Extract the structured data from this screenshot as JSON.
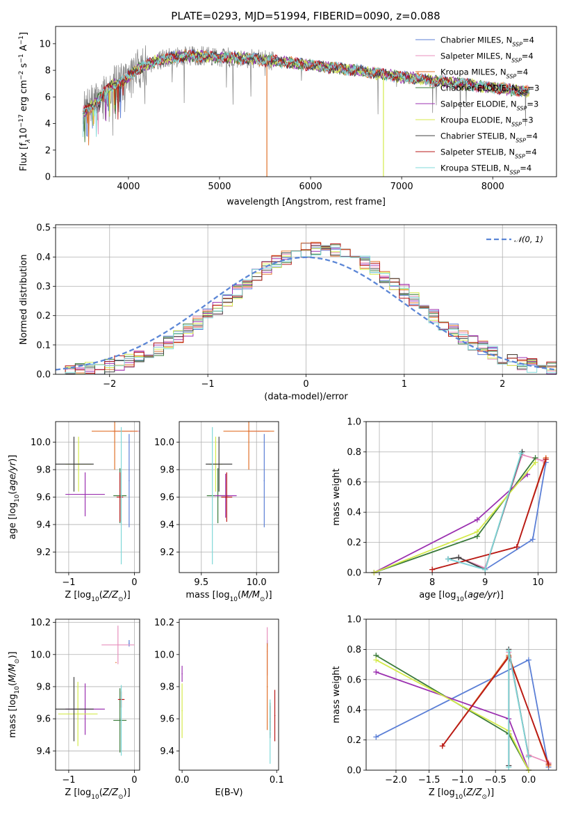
{
  "figure": {
    "title": "PLATE=0293, MJD=51994, FIBERID=0090, z=0.088"
  },
  "models": [
    {
      "name": "Chabrier MILES",
      "nssp": "4",
      "color": "#5b7fd6"
    },
    {
      "name": "Salpeter MILES",
      "nssp": "4",
      "color": "#e88fbc"
    },
    {
      "name": "Kroupa MILES",
      "nssp": "4",
      "color": "#e0722a"
    },
    {
      "name": "Chabrier ELODIE",
      "nssp": "3",
      "color": "#3a7a3a"
    },
    {
      "name": "Salpeter ELODIE",
      "nssp": "3",
      "color": "#9b30b0"
    },
    {
      "name": "Kroupa ELODIE",
      "nssp": "3",
      "color": "#d4ea4a"
    },
    {
      "name": "Chabrier STELIB",
      "nssp": "4",
      "color": "#404040"
    },
    {
      "name": "Salpeter STELIB",
      "nssp": "4",
      "color": "#b81818"
    },
    {
      "name": "Kroupa STELIB",
      "nssp": "4",
      "color": "#7fd8d8"
    }
  ],
  "chart_data": [
    {
      "id": "spectrum",
      "type": "line",
      "xlabel": "wavelength [Angstrom, rest frame]",
      "ylabel_parts": [
        "Flux [f",
        "λ",
        "10",
        "−17",
        " erg cm",
        "−2",
        " s",
        "−1",
        " A",
        "−1",
        "]"
      ],
      "xlim": [
        3200,
        8700
      ],
      "ylim": [
        0,
        11.3
      ],
      "xticks": [
        4000,
        5000,
        6000,
        7000,
        8000
      ],
      "yticks": [
        0,
        2,
        4,
        6,
        8,
        10
      ],
      "grid": false,
      "legend_position": "upper-right",
      "series_shape": [
        [
          3500,
          4.8
        ],
        [
          3650,
          5.6
        ],
        [
          3800,
          6.8
        ],
        [
          3950,
          7.2
        ],
        [
          4100,
          8.1
        ],
        [
          4300,
          8.7
        ],
        [
          4500,
          9.0
        ],
        [
          4700,
          9.1
        ],
        [
          5000,
          9.0
        ],
        [
          5300,
          8.9
        ],
        [
          5600,
          8.7
        ],
        [
          6000,
          8.4
        ],
        [
          6500,
          8.0
        ],
        [
          7000,
          7.5
        ],
        [
          7500,
          7.1
        ],
        [
          8000,
          6.7
        ],
        [
          8400,
          6.4
        ]
      ],
      "data_range": [
        3500,
        8400
      ],
      "spikes": [
        [
          5520,
          0
        ],
        [
          6800,
          0
        ]
      ]
    },
    {
      "id": "residuals",
      "type": "histogram",
      "xlabel": "(data-model)/error",
      "ylabel": "Normed distribution",
      "xlim": [
        -2.55,
        2.55
      ],
      "ylim": [
        0,
        0.51
      ],
      "xticks": [
        -2,
        -1,
        0,
        1,
        2
      ],
      "yticks": [
        0.0,
        0.1,
        0.2,
        0.3,
        0.4,
        0.5
      ],
      "grid": true,
      "legend_position": "upper-right",
      "reference_curve": "𝒩(0, 1)",
      "bin_width": 0.1
    },
    {
      "id": "z-age",
      "type": "errorbar",
      "xlabel": "Z [log10(Z/Z⊙)]",
      "ylabel": "age [log10(age/yr)]",
      "xlim": [
        -1.2,
        0.08
      ],
      "ylim": [
        9.05,
        10.15
      ],
      "xticks": [
        -1,
        0
      ],
      "yticks": [
        9.2,
        9.4,
        9.6,
        9.8,
        10.0
      ],
      "grid": true,
      "points": [
        {
          "model": 0,
          "x": -0.08,
          "y": 9.72,
          "xerr": 0.0,
          "yerr": 0.34
        },
        {
          "model": 1,
          "x": -0.05,
          "y": 10.08,
          "xerr": 0.28,
          "yerr": 0.0
        },
        {
          "model": 2,
          "x": -0.3,
          "y": 10.08,
          "xerr": 0.35,
          "yerr": 0.28
        },
        {
          "model": 3,
          "x": -0.22,
          "y": 9.61,
          "xerr": 0.1,
          "yerr": 0.2
        },
        {
          "model": 4,
          "x": -0.75,
          "y": 9.62,
          "xerr": 0.3,
          "yerr": 0.16
        },
        {
          "model": 5,
          "x": -0.85,
          "y": 9.84,
          "xerr": 0.2,
          "yerr": 0.2
        },
        {
          "model": 6,
          "x": -0.92,
          "y": 9.84,
          "xerr": 0.3,
          "yerr": 0.2
        },
        {
          "model": 7,
          "x": -0.22,
          "y": 9.6,
          "xerr": 0.05,
          "yerr": 0.18
        },
        {
          "model": 8,
          "x": -0.2,
          "y": 9.61,
          "xerr": 0.0,
          "yerr": 0.5
        }
      ]
    },
    {
      "id": "mass-age",
      "type": "errorbar",
      "xlabel": "mass [log10(M/M⊙)]",
      "ylabel": "",
      "xlim": [
        9.3,
        10.2
      ],
      "ylim": [
        9.05,
        10.15
      ],
      "xticks": [
        9.5,
        10.0
      ],
      "yticks": [
        9.2,
        9.4,
        9.6,
        9.8,
        10.0
      ],
      "grid": true,
      "points": [
        {
          "model": 0,
          "x": 10.07,
          "y": 9.72,
          "xerr": 0.0,
          "yerr": 0.34
        },
        {
          "model": 1,
          "x": 10.02,
          "y": 10.08,
          "xerr": 0.1,
          "yerr": 0.0
        },
        {
          "model": 2,
          "x": 9.93,
          "y": 10.08,
          "xerr": 0.23,
          "yerr": 0.28
        },
        {
          "model": 3,
          "x": 9.65,
          "y": 9.61,
          "xerr": 0.1,
          "yerr": 0.2
        },
        {
          "model": 4,
          "x": 9.72,
          "y": 9.61,
          "xerr": 0.1,
          "yerr": 0.16
        },
        {
          "model": 5,
          "x": 9.63,
          "y": 9.84,
          "xerr": 0.06,
          "yerr": 0.2
        },
        {
          "model": 6,
          "x": 9.66,
          "y": 9.84,
          "xerr": 0.12,
          "yerr": 0.2
        },
        {
          "model": 7,
          "x": 9.73,
          "y": 9.6,
          "xerr": 0.05,
          "yerr": 0.18
        },
        {
          "model": 8,
          "x": 9.6,
          "y": 9.61,
          "xerr": 0.0,
          "yerr": 0.5
        }
      ]
    },
    {
      "id": "age-weight",
      "type": "line",
      "xlabel": "age [log10(age/yr)]",
      "ylabel": "mass weight",
      "xlim": [
        6.75,
        10.35
      ],
      "ylim": [
        0,
        1
      ],
      "xticks": [
        7,
        8,
        9,
        10
      ],
      "yticks": [
        0.0,
        0.2,
        0.4,
        0.6,
        0.8,
        1.0
      ],
      "grid": true,
      "series": [
        {
          "model": 0,
          "x": [
            8.3,
            9.0,
            9.9,
            10.15
          ],
          "y": [
            0.09,
            0.02,
            0.22,
            0.73
          ]
        },
        {
          "model": 1,
          "x": [
            8.5,
            9.0,
            9.7,
            10.1
          ],
          "y": [
            0.1,
            0.03,
            0.78,
            0.74
          ]
        },
        {
          "model": 2,
          "x": [
            8.0,
            9.6,
            10.15
          ],
          "y": [
            0.02,
            0.17,
            0.76
          ]
        },
        {
          "model": 3,
          "x": [
            6.9,
            8.85,
            9.95
          ],
          "y": [
            0.0,
            0.24,
            0.76
          ]
        },
        {
          "model": 4,
          "x": [
            6.9,
            8.85,
            9.8
          ],
          "y": [
            0.0,
            0.35,
            0.65
          ]
        },
        {
          "model": 5,
          "x": [
            6.9,
            8.85,
            9.95
          ],
          "y": [
            0.0,
            0.27,
            0.73
          ]
        },
        {
          "model": 6,
          "x": [
            8.3,
            8.5,
            9.0,
            9.7
          ],
          "y": [
            0.09,
            0.1,
            0.02,
            0.8
          ]
        },
        {
          "model": 7,
          "x": [
            8.0,
            9.6,
            10.15
          ],
          "y": [
            0.02,
            0.17,
            0.75
          ]
        },
        {
          "model": 8,
          "x": [
            8.3,
            9.0,
            9.68
          ],
          "y": [
            0.09,
            0.02,
            0.79
          ]
        }
      ]
    },
    {
      "id": "z-mass",
      "type": "errorbar",
      "xlabel": "Z [log10(Z/Z⊙)]",
      "ylabel": "mass [log10(M/M⊙)]",
      "xlim": [
        -1.2,
        0.08
      ],
      "ylim": [
        9.28,
        10.22
      ],
      "xticks": [
        -1,
        0
      ],
      "yticks": [
        9.4,
        9.6,
        9.8,
        10.0,
        10.2
      ],
      "grid": true,
      "points": [
        {
          "model": 0,
          "x": -0.08,
          "y": 10.07,
          "xerr": 0.0,
          "yerr": 0.02
        },
        {
          "model": 1,
          "x": -0.25,
          "y": 10.06,
          "xerr": 0.25,
          "yerr": 0.12
        },
        {
          "model": 2,
          "x": -0.28,
          "y": 9.95,
          "xerr": 0.0,
          "yerr": 0.0
        },
        {
          "model": 3,
          "x": -0.22,
          "y": 9.59,
          "xerr": 0.1,
          "yerr": 0.2
        },
        {
          "model": 4,
          "x": -0.75,
          "y": 9.66,
          "xerr": 0.3,
          "yerr": 0.16
        },
        {
          "model": 5,
          "x": -0.86,
          "y": 9.63,
          "xerr": 0.3,
          "yerr": 0.2
        },
        {
          "model": 6,
          "x": -0.92,
          "y": 9.66,
          "xerr": 0.3,
          "yerr": 0.2
        },
        {
          "model": 7,
          "x": -0.2,
          "y": 9.72,
          "xerr": 0.05,
          "yerr": 0.05
        },
        {
          "model": 8,
          "x": -0.2,
          "y": 9.59,
          "xerr": 0.0,
          "yerr": 0.22
        }
      ]
    },
    {
      "id": "ebv-mass",
      "type": "errorbar",
      "xlabel": "E(B-V)",
      "ylabel": "",
      "xlim": [
        -0.003,
        0.102
      ],
      "ylim": [
        9.28,
        10.22
      ],
      "xticks": [
        0.0,
        0.1
      ],
      "yticks": [
        9.4,
        9.6,
        9.8,
        10.0,
        10.2
      ],
      "grid": false,
      "points": [
        {
          "model": 0,
          "x": 0.09,
          "y": 10.07,
          "xerr": 0.0,
          "yerr": 0.02
        },
        {
          "model": 1,
          "x": 0.09,
          "y": 10.02,
          "xerr": 0.0,
          "yerr": 0.15
        },
        {
          "model": 2,
          "x": 0.09,
          "y": 9.8,
          "xerr": 0.0,
          "yerr": 0.27
        },
        {
          "model": 3,
          "x": 0.093,
          "y": 9.6,
          "xerr": 0.0,
          "yerr": 0.1
        },
        {
          "model": 4,
          "x": 0.0,
          "y": 9.88,
          "xerr": 0.0,
          "yerr": 0.05
        },
        {
          "model": 5,
          "x": 0.0,
          "y": 9.65,
          "xerr": 0.0,
          "yerr": 0.17
        },
        {
          "model": 6,
          "x": 0.093,
          "y": 9.58,
          "xerr": 0.0,
          "yerr": 0.1
        },
        {
          "model": 7,
          "x": 0.098,
          "y": 9.62,
          "xerr": 0.0,
          "yerr": 0.16
        },
        {
          "model": 8,
          "x": 0.093,
          "y": 9.52,
          "xerr": 0.0,
          "yerr": 0.2
        }
      ]
    },
    {
      "id": "z-weight",
      "type": "line",
      "xlabel": "Z [log10(Z/Z⊙)]",
      "ylabel": "mass weight",
      "xlim": [
        -2.45,
        0.42
      ],
      "ylim": [
        0,
        1
      ],
      "xticks": [
        -2.0,
        -1.5,
        -1.0,
        -0.5,
        0.0
      ],
      "yticks": [
        0.0,
        0.2,
        0.4,
        0.6,
        0.8,
        1.0
      ],
      "grid": true,
      "series": [
        {
          "model": 0,
          "x": [
            -2.3,
            0.0,
            0.3
          ],
          "y": [
            0.22,
            0.73,
            0.02
          ]
        },
        {
          "model": 1,
          "x": [
            -0.3,
            -0.3,
            0.0,
            0.3
          ],
          "y": [
            0.03,
            0.78,
            0.1,
            0.05
          ]
        },
        {
          "model": 2,
          "x": [
            -1.3,
            -0.3,
            0.3
          ],
          "y": [
            0.16,
            0.76,
            0.03
          ]
        },
        {
          "model": 3,
          "x": [
            -2.3,
            -0.3,
            0.0
          ],
          "y": [
            0.76,
            0.24,
            0.0
          ]
        },
        {
          "model": 4,
          "x": [
            -2.3,
            -0.3,
            0.0
          ],
          "y": [
            0.65,
            0.34,
            0.0
          ]
        },
        {
          "model": 5,
          "x": [
            -2.3,
            -0.3,
            0.0
          ],
          "y": [
            0.73,
            0.26,
            0.0
          ]
        },
        {
          "model": 6,
          "x": [
            -0.3,
            -0.3,
            0.0,
            0.0
          ],
          "y": [
            0.03,
            0.8,
            0.09,
            0.09
          ]
        },
        {
          "model": 7,
          "x": [
            -1.3,
            -0.3,
            0.3
          ],
          "y": [
            0.16,
            0.75,
            0.04
          ]
        },
        {
          "model": 8,
          "x": [
            -0.3,
            -0.3,
            0.0
          ],
          "y": [
            0.02,
            0.79,
            0.09
          ]
        }
      ]
    }
  ]
}
